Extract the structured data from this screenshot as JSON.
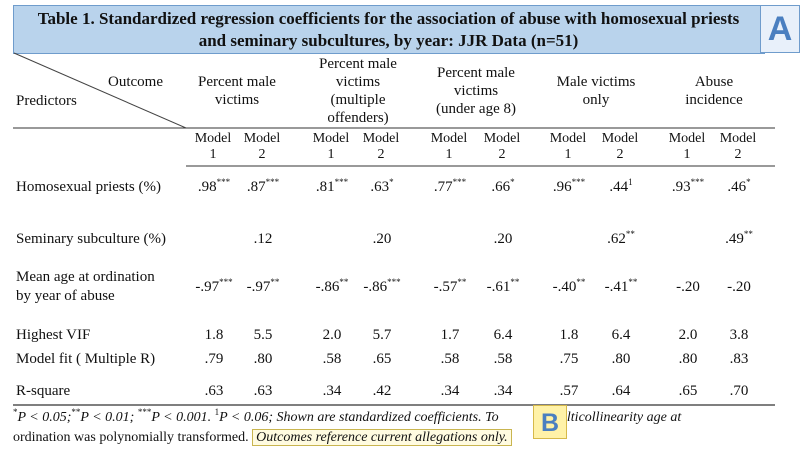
{
  "title": {
    "line1": "Table 1. Standardized regression coefficients for the association of abuse with homosexual priests",
    "line2": "and seminary subcultures, by year: JJR Data (n=51)"
  },
  "tags": {
    "a": "A",
    "b": "B"
  },
  "header": {
    "outcome": "Outcome",
    "predictors": "Predictors",
    "groups": [
      {
        "lines": [
          "Percent male",
          "victims"
        ]
      },
      {
        "lines": [
          "Percent male",
          "victims",
          "(multiple",
          "offenders)"
        ]
      },
      {
        "lines": [
          "Percent male",
          "victims",
          "(under age 8)"
        ]
      },
      {
        "lines": [
          "Male victims",
          "only"
        ]
      },
      {
        "lines": [
          "Abuse",
          "incidence"
        ]
      }
    ],
    "models": [
      {
        "top": "Model",
        "bottom": "1"
      },
      {
        "top": "Model",
        "bottom": "2"
      },
      {
        "top": "Model",
        "bottom": "1"
      },
      {
        "top": "Model",
        "bottom": "2"
      },
      {
        "top": "Model",
        "bottom": "1"
      },
      {
        "top": "Model",
        "bottom": "2"
      },
      {
        "top": "Model",
        "bottom": "1"
      },
      {
        "top": "Model",
        "bottom": "2"
      },
      {
        "top": "Model",
        "bottom": "1"
      },
      {
        "top": "Model",
        "bottom": "2"
      }
    ]
  },
  "rows": [
    {
      "label": [
        "Homosexual priests (%)"
      ],
      "cells": [
        [
          ".98",
          "***"
        ],
        [
          ".87",
          "***"
        ],
        [
          ".81",
          "***"
        ],
        [
          ".63",
          "*"
        ],
        [
          ".77",
          "***"
        ],
        [
          ".66",
          "*"
        ],
        [
          ".96",
          "***"
        ],
        [
          ".44",
          "1"
        ],
        [
          ".93",
          "***"
        ],
        [
          ".46",
          "*"
        ]
      ]
    },
    {
      "label": [
        "Seminary subculture (%)"
      ],
      "cells": [
        [
          "",
          ""
        ],
        [
          ".12",
          ""
        ],
        [
          "",
          ""
        ],
        [
          ".20",
          ""
        ],
        [
          "",
          ""
        ],
        [
          ".20",
          ""
        ],
        [
          "",
          ""
        ],
        [
          ".62",
          "**"
        ],
        [
          "",
          ""
        ],
        [
          ".49",
          "**"
        ]
      ]
    },
    {
      "label": [
        "Mean age at ordination",
        "by year of abuse"
      ],
      "cells": [
        [
          "-.97",
          "***"
        ],
        [
          "-.97",
          "**"
        ],
        [
          "-.86",
          "**"
        ],
        [
          "-.86",
          "***"
        ],
        [
          "-.57",
          "**"
        ],
        [
          "-.61",
          "**"
        ],
        [
          "-.40",
          "**"
        ],
        [
          "-.41",
          "**"
        ],
        [
          "-.20",
          ""
        ],
        [
          "-.20",
          ""
        ]
      ]
    },
    {
      "label": [
        "Highest VIF"
      ],
      "cells": [
        [
          "1.8",
          ""
        ],
        [
          "5.5",
          ""
        ],
        [
          "2.0",
          ""
        ],
        [
          "5.7",
          ""
        ],
        [
          "1.7",
          ""
        ],
        [
          "6.4",
          ""
        ],
        [
          "1.8",
          ""
        ],
        [
          "6.4",
          ""
        ],
        [
          "2.0",
          ""
        ],
        [
          "3.8",
          ""
        ]
      ]
    },
    {
      "label": [
        "Model fit ( Multiple R)"
      ],
      "cells": [
        [
          ".79",
          ""
        ],
        [
          ".80",
          ""
        ],
        [
          ".58",
          ""
        ],
        [
          ".65",
          ""
        ],
        [
          ".58",
          ""
        ],
        [
          ".58",
          ""
        ],
        [
          ".75",
          ""
        ],
        [
          ".80",
          ""
        ],
        [
          ".80",
          ""
        ],
        [
          ".83",
          ""
        ]
      ]
    },
    {
      "label": [
        "R-square"
      ],
      "cells": [
        [
          ".63",
          ""
        ],
        [
          ".63",
          ""
        ],
        [
          ".34",
          ""
        ],
        [
          ".42",
          ""
        ],
        [
          ".34",
          ""
        ],
        [
          ".34",
          ""
        ],
        [
          ".57",
          ""
        ],
        [
          ".64",
          ""
        ],
        [
          ".65",
          ""
        ],
        [
          ".70",
          ""
        ]
      ]
    }
  ],
  "footnote": {
    "line1_a": "P < 0.05;",
    "line1_b": "P < 0.01;",
    "line1_c": "P < 0.001.",
    "line1_d": "P < 0.06;",
    "line1_e": "Shown are standardized coefficients. To",
    "line1_f": "e multicollinearity age at",
    "line2_a": "ordination was polynomially transformed.",
    "line2_b": "Outcomes reference current allegations only.",
    "sup1": "*",
    "sup2": "**",
    "sup3": "***",
    "sup4": "1"
  }
}
